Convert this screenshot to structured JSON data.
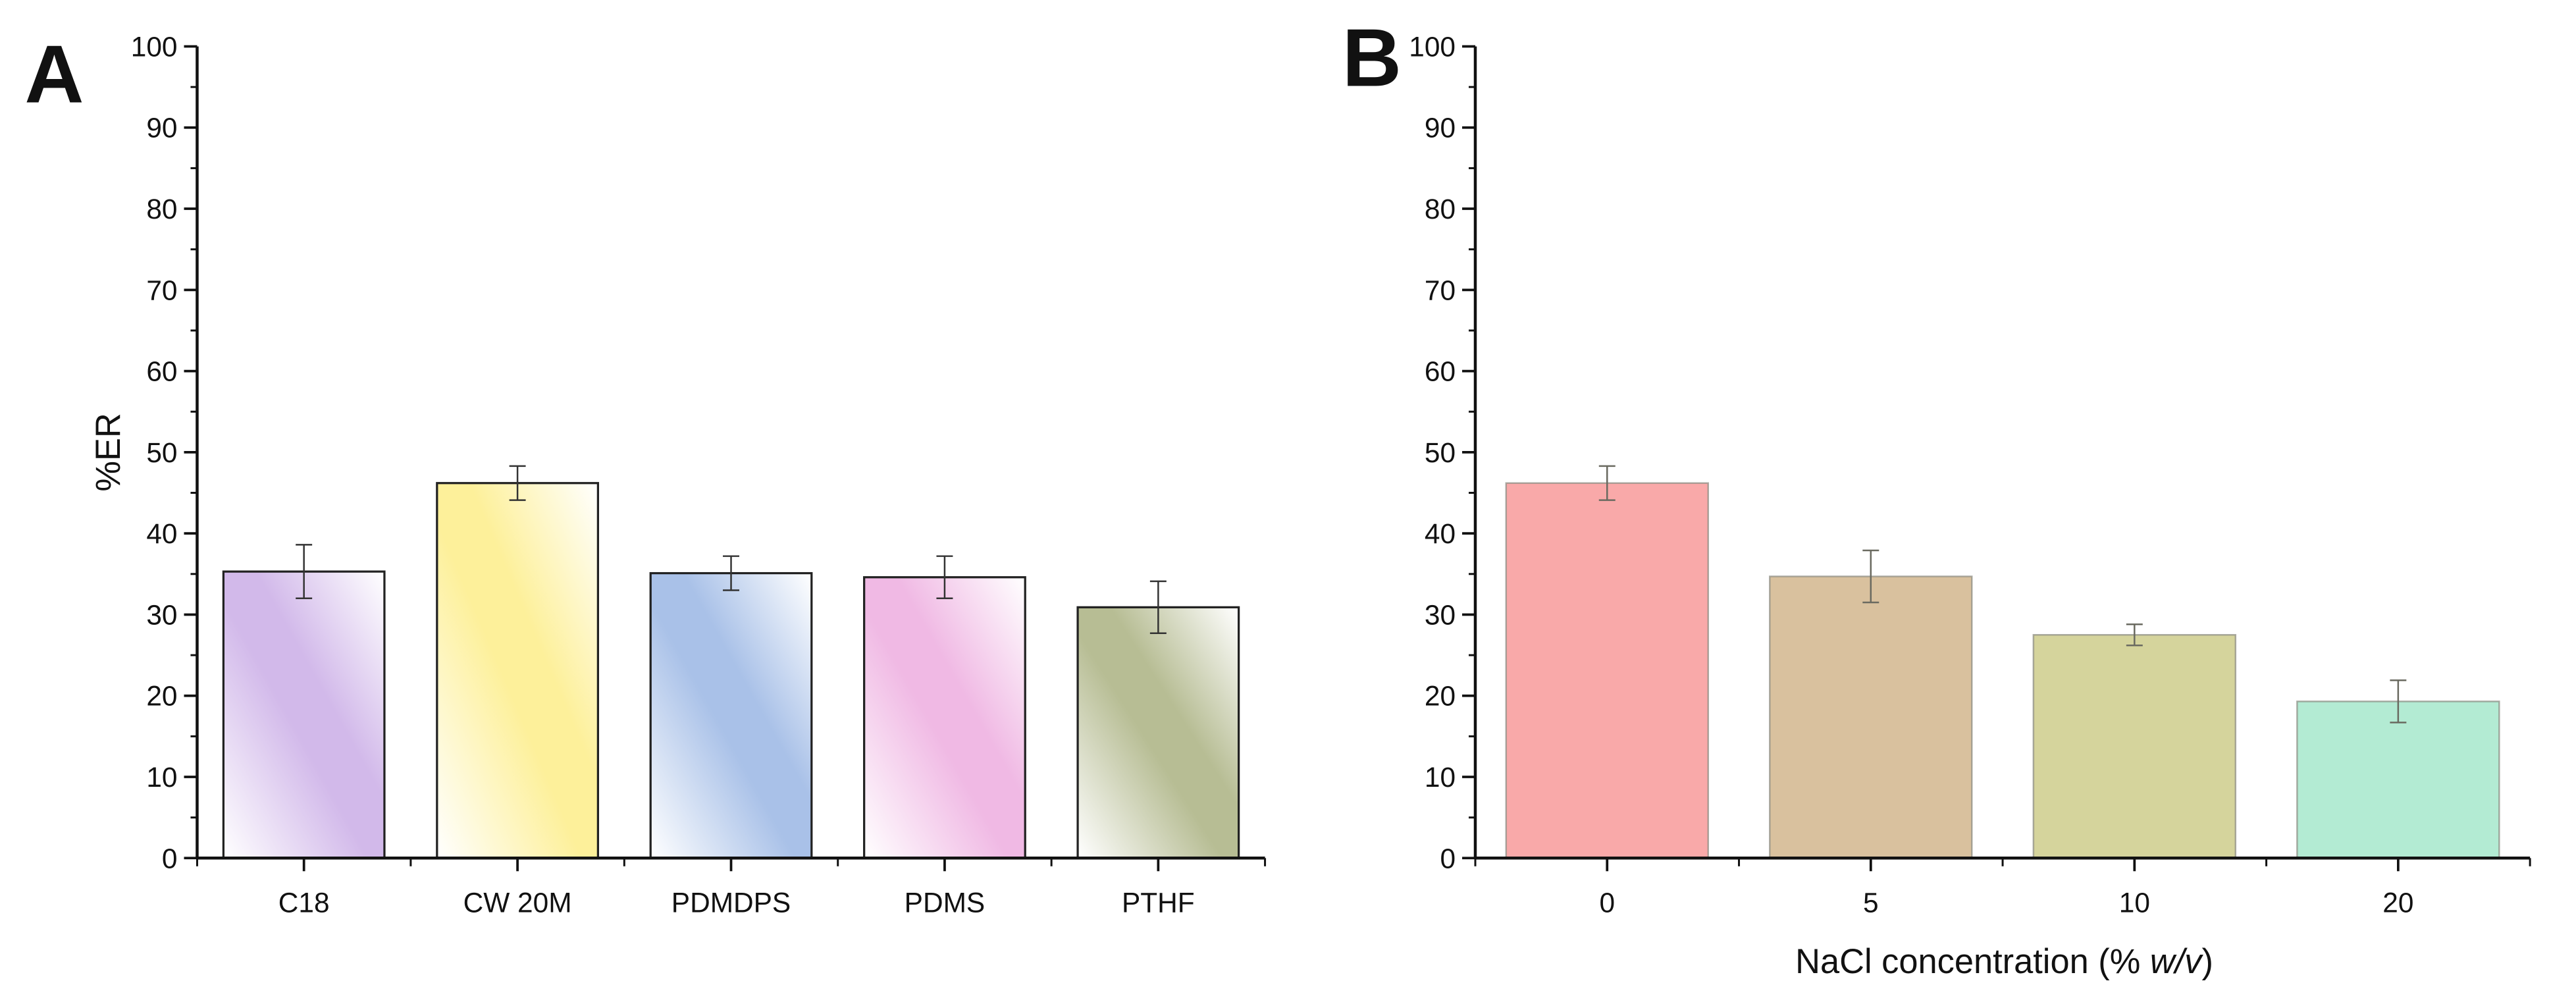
{
  "chart_data": [
    {
      "panel": "A",
      "type": "bar",
      "title": "",
      "xlabel": "",
      "ylabel": "%ER",
      "ylim": [
        0,
        100
      ],
      "yticks": [
        0,
        10,
        20,
        30,
        40,
        50,
        60,
        70,
        80,
        90,
        100
      ],
      "categories": [
        "C18",
        "CW 20M",
        "PDMDPS",
        "PDMS",
        "PTHF"
      ],
      "values": [
        35.3,
        46.2,
        35.1,
        34.6,
        30.9
      ],
      "errors": [
        3.3,
        2.1,
        2.1,
        2.6,
        3.2
      ],
      "colors": [
        "#d2b9ea",
        "#fdf09a",
        "#a9c1e8",
        "#f0b9e4",
        "#b7bd94"
      ],
      "fill": "diagonal-gradient",
      "grid": false
    },
    {
      "panel": "B",
      "type": "bar",
      "title": "",
      "xlabel": "NaCl concentration (% w/v)",
      "xlabel_parts": {
        "prefix": "NaCl concentration (% ",
        "italic": "w/v",
        "suffix": ")"
      },
      "ylabel": "",
      "ylim": [
        0,
        100
      ],
      "yticks": [
        0,
        10,
        20,
        30,
        40,
        50,
        60,
        70,
        80,
        90,
        100
      ],
      "categories": [
        "0",
        "5",
        "10",
        "20"
      ],
      "values": [
        46.2,
        34.7,
        27.5,
        19.3
      ],
      "errors": [
        2.1,
        3.2,
        1.3,
        2.6
      ],
      "colors": [
        "#f9a9a9",
        "#d9c19e",
        "#d5d49c",
        "#b3ebd3"
      ],
      "fill": "solid",
      "grid": false
    }
  ]
}
